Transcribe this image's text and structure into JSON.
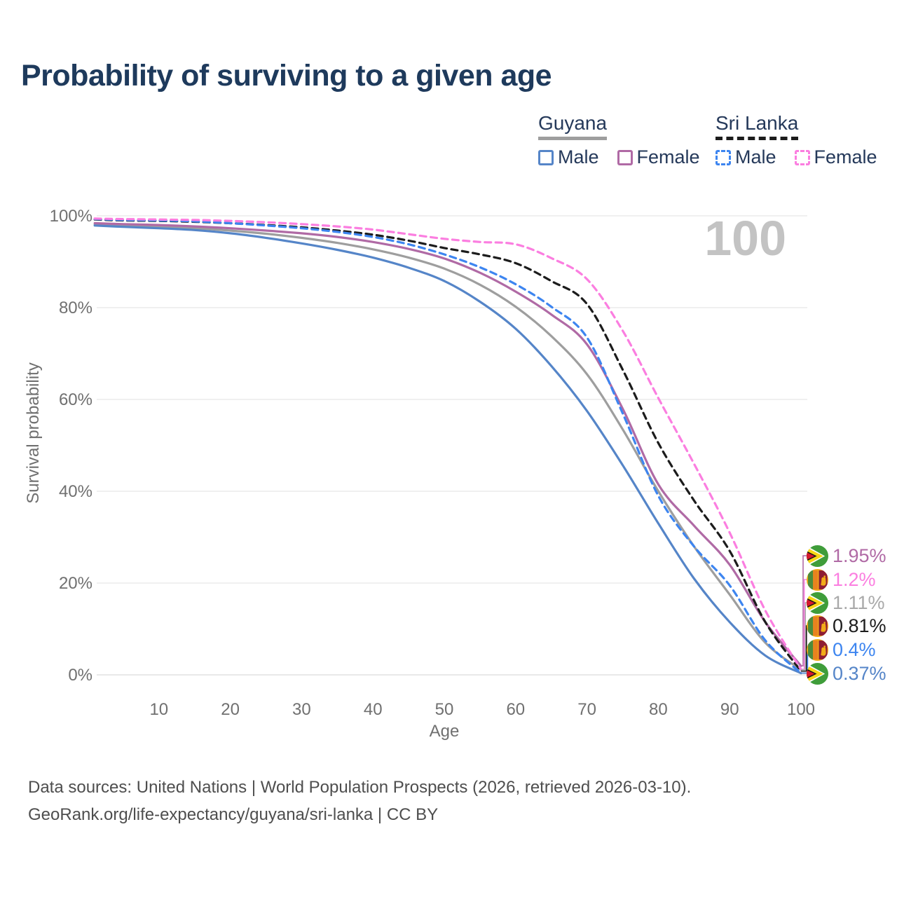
{
  "title": "Probability of surviving to a given age",
  "hover_age_label": "100",
  "legend": {
    "groups": [
      {
        "country": "Guyana",
        "line_style": "solid",
        "underline_color": "#9e9e9e",
        "items": [
          {
            "label": "Male",
            "color": "#5585c8",
            "dashed": false
          },
          {
            "label": "Female",
            "color": "#b06aa5",
            "dashed": false
          }
        ]
      },
      {
        "country": "Sri Lanka",
        "line_style": "dashed",
        "underline_color": "#1c1c1c",
        "items": [
          {
            "label": "Male",
            "color": "#3d85f0",
            "dashed": true
          },
          {
            "label": "Female",
            "color": "#fb7ee0",
            "dashed": true
          }
        ]
      }
    ]
  },
  "axes": {
    "xlabel": "Age",
    "ylabel": "Survival probability",
    "x_ticks": [
      10,
      20,
      30,
      40,
      50,
      60,
      70,
      80,
      90,
      100
    ],
    "y_ticks": [
      {
        "label": "0%",
        "value": 0
      },
      {
        "label": "20%",
        "value": 20
      },
      {
        "label": "40%",
        "value": 40
      },
      {
        "label": "60%",
        "value": 60
      },
      {
        "label": "80%",
        "value": 80
      },
      {
        "label": "100%",
        "value": 100
      }
    ]
  },
  "chart_data": {
    "type": "line",
    "title": "Probability of surviving to a given age",
    "xlabel": "Age",
    "ylabel": "Survival probability",
    "xlim": [
      0,
      100
    ],
    "ylim_percent": [
      0,
      100
    ],
    "grid": "horizontal-only",
    "hovered_age": 100,
    "ages": [
      0,
      1,
      5,
      10,
      15,
      20,
      25,
      30,
      35,
      40,
      45,
      50,
      55,
      60,
      65,
      70,
      75,
      80,
      85,
      90,
      95,
      100
    ],
    "series": [
      {
        "name": "Guyana — Male",
        "country": "Guyana",
        "sex": "Male",
        "color": "#5585c8",
        "dashed": false,
        "values": [
          100,
          97.9,
          97.6,
          97.3,
          96.9,
          96.2,
          95.2,
          94.0,
          92.6,
          90.9,
          88.7,
          85.8,
          81.3,
          75.4,
          67.3,
          57.5,
          45.7,
          33.0,
          21.0,
          11.5,
          4.2,
          0.37
        ]
      },
      {
        "name": "Guyana — Female",
        "country": "Guyana",
        "sex": "Female",
        "color": "#b06aa5",
        "dashed": false,
        "values": [
          100,
          98.4,
          98.2,
          98.0,
          97.7,
          97.3,
          96.8,
          96.2,
          95.4,
          94.3,
          92.8,
          90.7,
          87.6,
          83.5,
          78.5,
          72.0,
          58.0,
          41.5,
          32.5,
          24.0,
          11.5,
          1.95
        ]
      },
      {
        "name": "Guyana — Both sexes",
        "country": "Guyana",
        "sex": "Both",
        "color": "#9e9e9e",
        "dashed": false,
        "values": [
          100,
          98.1,
          97.8,
          97.6,
          97.3,
          96.8,
          96.1,
          95.2,
          94.1,
          92.7,
          90.9,
          88.5,
          85.0,
          80.2,
          73.8,
          65.5,
          53.5,
          40.0,
          28.0,
          17.5,
          7.0,
          1.11
        ]
      },
      {
        "name": "Sri Lanka — Male",
        "country": "Sri Lanka",
        "sex": "Male",
        "color": "#3d85f0",
        "dashed": true,
        "values": [
          100,
          99.3,
          99.1,
          99.0,
          98.8,
          98.4,
          97.9,
          97.3,
          96.5,
          95.4,
          93.8,
          91.6,
          88.8,
          85.1,
          80.2,
          73.5,
          57.0,
          39.0,
          28.0,
          19.5,
          7.5,
          0.4
        ]
      },
      {
        "name": "Sri Lanka — Female",
        "country": "Sri Lanka",
        "sex": "Female",
        "color": "#fb7ee0",
        "dashed": true,
        "values": [
          100,
          99.4,
          99.3,
          99.2,
          99.1,
          98.9,
          98.6,
          98.2,
          97.7,
          97.0,
          96.0,
          95.0,
          94.3,
          93.8,
          90.8,
          86.2,
          75.0,
          60.3,
          46.0,
          31.0,
          14.0,
          1.2
        ]
      },
      {
        "name": "Sri Lanka — Both sexes",
        "country": "Sri Lanka",
        "sex": "Both",
        "color": "#1c1c1c",
        "dashed": true,
        "values": [
          100,
          99.2,
          99.0,
          98.9,
          98.7,
          98.4,
          98.0,
          97.5,
          96.8,
          95.9,
          94.6,
          93.0,
          91.6,
          89.7,
          85.8,
          80.8,
          66.5,
          50.5,
          38.0,
          27.0,
          11.5,
          0.81
        ]
      }
    ]
  },
  "end_labels": [
    {
      "value": "1.95%",
      "color": "#b06aa5",
      "flag": "guyana",
      "series_index": 1
    },
    {
      "value": "1.2%",
      "color": "#fb7ee0",
      "flag": "sri-lanka",
      "series_index": 4
    },
    {
      "value": "1.11%",
      "color": "#a9a9a9",
      "flag": "guyana",
      "series_index": 2
    },
    {
      "value": "0.81%",
      "color": "#1c1c1c",
      "flag": "sri-lanka",
      "series_index": 5
    },
    {
      "value": "0.4%",
      "color": "#3d85f0",
      "flag": "sri-lanka",
      "series_index": 3
    },
    {
      "value": "0.37%",
      "color": "#5585c8",
      "flag": "guyana",
      "series_index": 0
    }
  ],
  "footer": {
    "line1": "Data sources: United Nations | World Population Prospects (2026, retrieved 2026-03-10).",
    "line2": "GeoRank.org/life-expectancy/guyana/sri-lanka | CC BY"
  }
}
